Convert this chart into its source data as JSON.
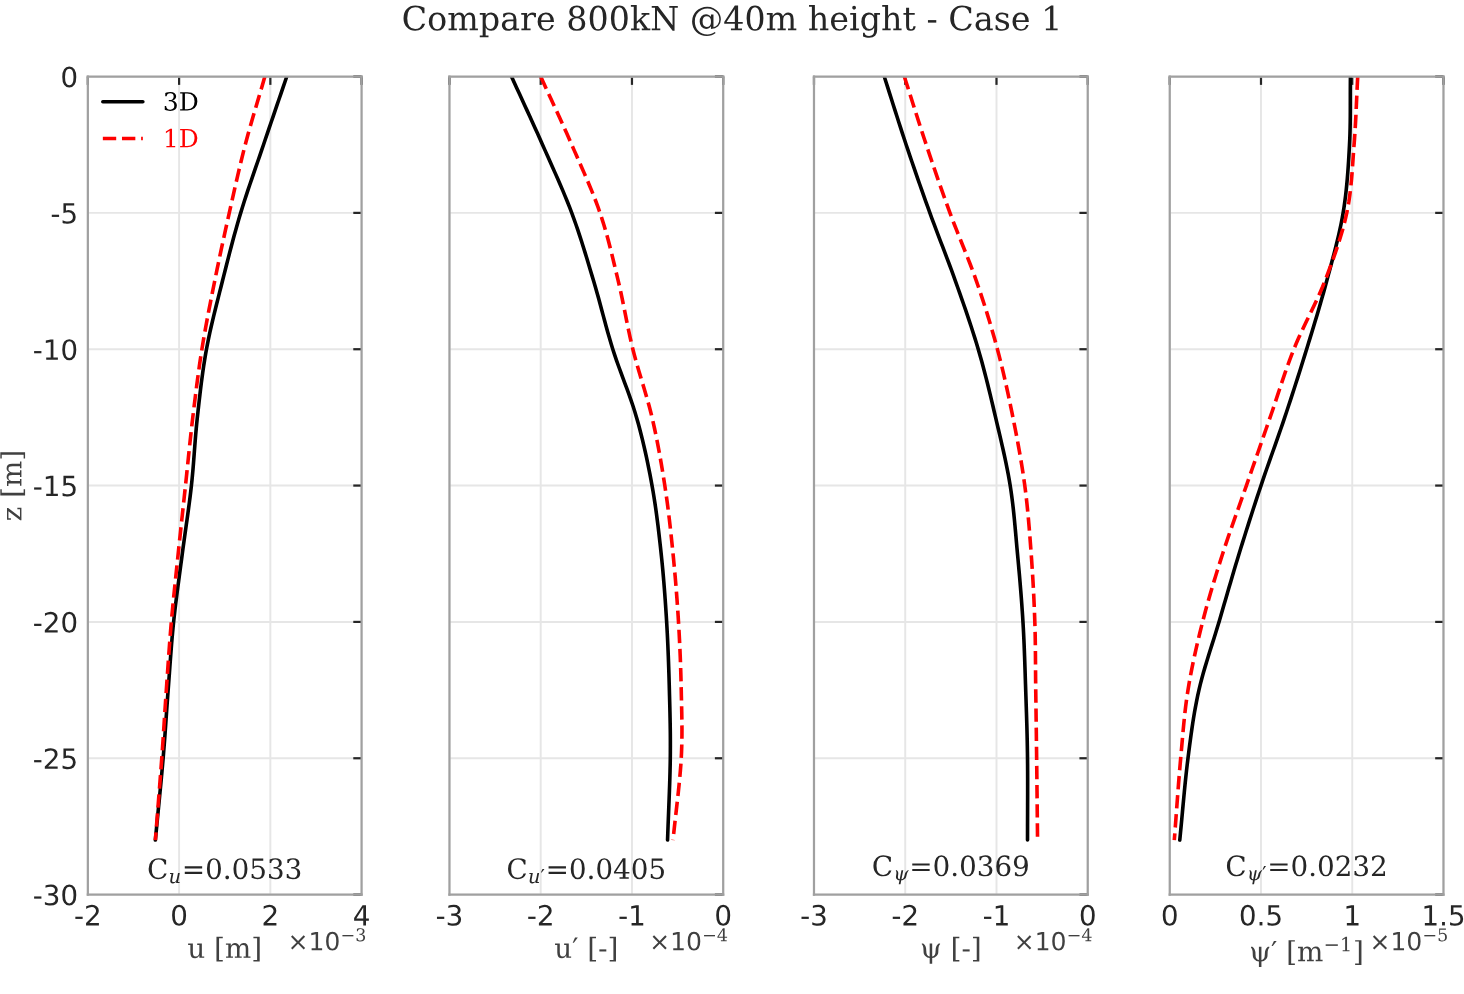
{
  "chart_data": [
    {
      "type": "line",
      "xlabel": "u [m]",
      "ylabel": "z [m]",
      "xlim": [
        -2,
        4
      ],
      "xticks": [
        -2,
        0,
        2,
        4
      ],
      "ylim": [
        -30,
        0
      ],
      "yticks": [
        -30,
        -25,
        -20,
        -15,
        -10,
        -5,
        0
      ],
      "grid": true,
      "legend": "top left",
      "annotations": [
        "C$_{u}$=0.0533",
        "×10$^{−3}$"
      ],
      "series": [
        {
          "name": "3D",
          "color": "#000000",
          "line_style": "solid",
          "x": [
            2.36,
            1.85,
            1.35,
            0.95,
            0.6,
            0.4,
            0.27,
            0.07,
            -0.12,
            -0.24,
            -0.35,
            -0.52
          ],
          "values": [
            0,
            -2.5,
            -5,
            -7.5,
            -10,
            -12.5,
            -15,
            -17.5,
            -20,
            -22.5,
            -25,
            -28
          ]
        },
        {
          "name": "1D",
          "color": "#ff0000",
          "line_style": "dashed",
          "x": [
            1.88,
            1.45,
            1.1,
            0.78,
            0.5,
            0.3,
            0.14,
            -0.02,
            -0.17,
            -0.28,
            -0.38,
            -0.52
          ],
          "values": [
            0,
            -2.5,
            -5,
            -7.5,
            -10,
            -12.5,
            -15,
            -17.5,
            -20,
            -22.5,
            -25,
            -28
          ]
        }
      ]
    },
    {
      "type": "line",
      "title": "Compare 800kN @40m height - Case 1",
      "xlabel": "u′ [-]",
      "xlim": [
        -3,
        0
      ],
      "xticks": [
        -3,
        -2,
        -1,
        0
      ],
      "ylim": [
        -30,
        0
      ],
      "yticks": [
        -30,
        -25,
        -20,
        -15,
        -10,
        -5,
        0
      ],
      "grid": true,
      "tick_labels": "x",
      "annotations": [
        "C$_{u′}$=0.0405",
        "×10$^{−4}$"
      ],
      "series": [
        {
          "color": "#000000",
          "line_style": "solid",
          "x": [
            -2.32,
            -1.98,
            -1.66,
            -1.42,
            -1.21,
            -0.95,
            -0.78,
            -0.68,
            -0.62,
            -0.59,
            -0.58,
            -0.61
          ],
          "values": [
            0,
            -2.5,
            -5,
            -7.5,
            -10,
            -12.5,
            -15,
            -17.5,
            -20,
            -22.5,
            -25,
            -28
          ]
        },
        {
          "color": "#ff0000",
          "line_style": "dashed",
          "x": [
            -2.0,
            -1.66,
            -1.35,
            -1.15,
            -0.99,
            -0.78,
            -0.64,
            -0.55,
            -0.49,
            -0.46,
            -0.46,
            -0.55
          ],
          "values": [
            0,
            -2.5,
            -5,
            -7.5,
            -10,
            -12.5,
            -15,
            -17.5,
            -20,
            -22.5,
            -25,
            -28
          ]
        }
      ]
    },
    {
      "type": "line",
      "xlabel": "ψ [-]",
      "xlim": [
        -3,
        0
      ],
      "xticks": [
        -3,
        -2,
        -1,
        0
      ],
      "ylim": [
        -30,
        0
      ],
      "yticks": [
        -30,
        -25,
        -20,
        -15,
        -10,
        -5,
        0
      ],
      "grid": true,
      "tick_labels": "x",
      "annotations": [
        "C$_{ψ}$=0.0369",
        "×10$^{−4}$"
      ],
      "series": [
        {
          "color": "#000000",
          "line_style": "solid",
          "x": [
            -2.23,
            -1.99,
            -1.73,
            -1.45,
            -1.2,
            -1.01,
            -0.85,
            -0.77,
            -0.71,
            -0.68,
            -0.66,
            -0.66
          ],
          "values": [
            0,
            -2.5,
            -5,
            -7.5,
            -10,
            -12.5,
            -15,
            -17.5,
            -20,
            -22.5,
            -25,
            -28
          ]
        },
        {
          "color": "#ff0000",
          "line_style": "dashed",
          "x": [
            -2.01,
            -1.77,
            -1.51,
            -1.22,
            -0.99,
            -0.82,
            -0.69,
            -0.62,
            -0.58,
            -0.57,
            -0.56,
            -0.55
          ],
          "values": [
            0,
            -2.5,
            -5,
            -7.5,
            -10,
            -12.5,
            -15,
            -17.5,
            -20,
            -22.5,
            -25,
            -28
          ]
        }
      ]
    },
    {
      "type": "line",
      "xlabel": "ψ′ [m$^{−1}$]",
      "xlim": [
        0,
        1.5
      ],
      "xticks": [
        0,
        0.5,
        1,
        1.5
      ],
      "ylim": [
        -30,
        0
      ],
      "yticks": [
        -30,
        -25,
        -20,
        -15,
        -10,
        -5,
        0
      ],
      "grid": true,
      "tick_labels": "x",
      "annotations": [
        "C$_{ψ′}$=0.0232",
        "×10$^{−5}$"
      ],
      "series": [
        {
          "color": "#000000",
          "line_style": "solid",
          "x": [
            0.99,
            0.985,
            0.95,
            0.86,
            0.75,
            0.63,
            0.5,
            0.38,
            0.27,
            0.16,
            0.1,
            0.055
          ],
          "values": [
            0,
            -2.5,
            -5,
            -7.5,
            -10,
            -12.5,
            -15,
            -17.5,
            -20,
            -22.5,
            -25,
            -28
          ]
        },
        {
          "color": "#ff0000",
          "line_style": "dashed",
          "x": [
            1.03,
            1.01,
            0.97,
            0.85,
            0.68,
            0.55,
            0.42,
            0.29,
            0.18,
            0.1,
            0.06,
            0.025
          ],
          "values": [
            0,
            -2.5,
            -5,
            -7.5,
            -10,
            -12.5,
            -15,
            -17.5,
            -20,
            -22.5,
            -25,
            -28
          ]
        }
      ]
    }
  ]
}
